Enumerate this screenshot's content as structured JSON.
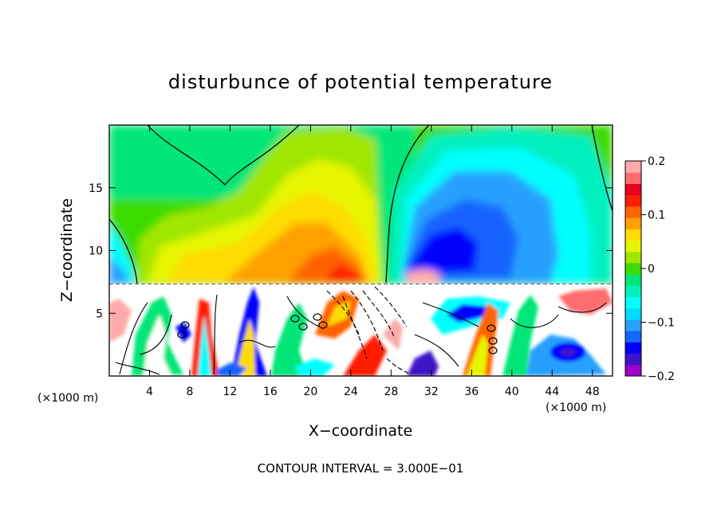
{
  "chart_data": {
    "type": "heatmap",
    "title": "disturbunce of potential temperature",
    "xlabel": "X−coordinate",
    "ylabel": "Z−coordinate",
    "x_unit_left": "(×1000 m)",
    "x_unit_right": "(×1000 m)",
    "xlim": [
      0,
      50
    ],
    "ylim": [
      0,
      20
    ],
    "xticks": [
      4,
      8,
      12,
      16,
      20,
      24,
      28,
      32,
      36,
      40,
      44,
      48
    ],
    "yticks": [
      5,
      10,
      15
    ],
    "colorbar": {
      "range": [
        -0.2,
        0.2
      ],
      "ticks": [
        0.2,
        0.1,
        0,
        -0.1,
        -0.2
      ],
      "tick_labels": [
        "0.2",
        "0.1",
        "0",
        "−0.1",
        "−0.2"
      ],
      "colors": [
        "#a000c8",
        "#3c14c8",
        "#0000ff",
        "#1464ff",
        "#28a0ff",
        "#00dcff",
        "#00ffff",
        "#00f0c0",
        "#00e678",
        "#3cdc00",
        "#a0e600",
        "#e6f500",
        "#ffdc00",
        "#ffa000",
        "#ff6400",
        "#ff1e00",
        "#e6001e",
        "#ff6e6e",
        "#ffaaaa"
      ]
    },
    "caption": "CONTOUR INTERVAL = 3.000E−01",
    "field_description": [
      {
        "x": 5,
        "z": 17,
        "value": 0.02
      },
      {
        "x": 12,
        "z": 13,
        "value": 0.06
      },
      {
        "x": 20,
        "z": 16,
        "value": 0.07
      },
      {
        "x": 24,
        "z": 10,
        "value": 0.12
      },
      {
        "x": 34,
        "z": 15,
        "value": -0.06
      },
      {
        "x": 34,
        "z": 10,
        "value": -0.14
      },
      {
        "x": 44,
        "z": 13,
        "value": 0.0
      },
      {
        "x": 31,
        "z": 8.5,
        "value": 0.17
      }
    ]
  }
}
